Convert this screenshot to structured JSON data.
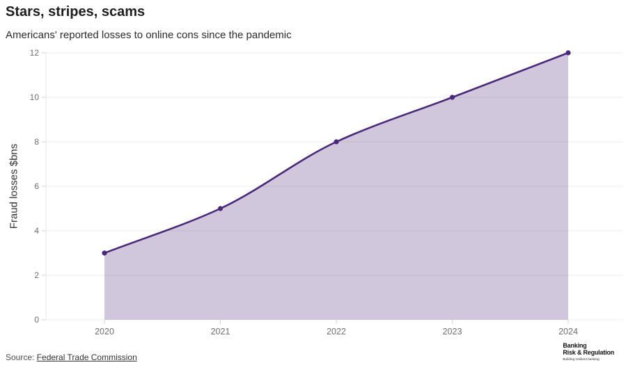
{
  "header": {
    "title": "Stars, stripes, scams",
    "subtitle": "Americans' reported losses to online cons since the pandemic"
  },
  "chart_data": {
    "type": "area",
    "categories": [
      "2020",
      "2021",
      "2022",
      "2023",
      "2024"
    ],
    "values": [
      3,
      5,
      8,
      10,
      12
    ],
    "title": "Stars, stripes, scams",
    "xlabel": "",
    "ylabel": "Fraud losses $bns",
    "ylim": [
      0,
      12
    ],
    "yticks": [
      0,
      2,
      4,
      6,
      8,
      10,
      12
    ],
    "grid": true,
    "smooth": true,
    "legend": "none",
    "line_color": "#4B267D",
    "fill_color": "#4B267D",
    "fill_opacity": 0.26
  },
  "footer": {
    "source_label": "Source:",
    "source_link": "Federal Trade Commission",
    "logo": {
      "line1": "Banking",
      "line2": "Risk & Regulation",
      "tagline": "Building resilient banking"
    }
  }
}
